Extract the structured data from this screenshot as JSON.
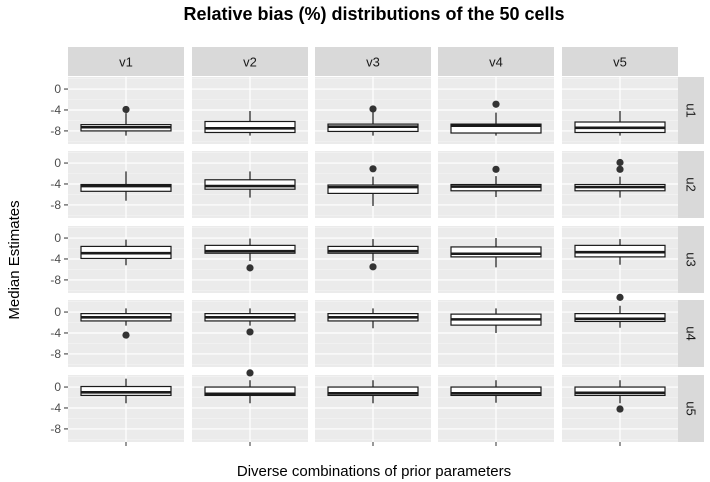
{
  "chart_data": {
    "type": "box",
    "title": "Relative bias (%) distributions of the 50 cells",
    "xlabel": "Diverse combinations of prior parameters",
    "ylabel": "Median Estimates",
    "col_facets": [
      "v1",
      "v2",
      "v3",
      "v4",
      "v5"
    ],
    "row_facets": [
      "u1",
      "u2",
      "u3",
      "u4",
      "u5"
    ],
    "y_ticks": [
      0,
      -4,
      -8
    ],
    "y_tick_labels": [
      "0",
      "-4",
      "-8"
    ],
    "ylim": [
      -10.5,
      2.3
    ],
    "grid": true,
    "panel_background": "#ebebeb",
    "strip_background": "#d9d9d9",
    "box_color": "#1a1a1a",
    "boxes": [
      [
        {
          "q1": -8.0,
          "median": -7.3,
          "q3": -6.8,
          "whisker_low": -8.9,
          "whisker_high": -4.6,
          "outliers": [
            -3.9
          ]
        },
        {
          "q1": -8.3,
          "median": -7.5,
          "q3": -6.2,
          "whisker_low": -8.9,
          "whisker_high": -4.2,
          "outliers": []
        },
        {
          "q1": -8.1,
          "median": -7.2,
          "q3": -6.7,
          "whisker_low": -8.9,
          "whisker_high": -4.4,
          "outliers": [
            -3.8
          ]
        },
        {
          "q1": -8.4,
          "median": -7.0,
          "q3": -6.7,
          "whisker_low": -8.9,
          "whisker_high": -4.5,
          "outliers": [
            -2.9
          ]
        },
        {
          "q1": -8.3,
          "median": -7.4,
          "q3": -6.3,
          "whisker_low": -8.9,
          "whisker_high": -4.2,
          "outliers": []
        }
      ],
      [
        {
          "q1": -5.4,
          "median": -4.4,
          "q3": -4.1,
          "whisker_low": -7.2,
          "whisker_high": -1.6,
          "outliers": []
        },
        {
          "q1": -5.0,
          "median": -4.4,
          "q3": -3.2,
          "whisker_low": -6.6,
          "whisker_high": -1.6,
          "outliers": []
        },
        {
          "q1": -5.8,
          "median": -4.6,
          "q3": -4.2,
          "whisker_low": -8.2,
          "whisker_high": -2.6,
          "outliers": [
            -1.1
          ]
        },
        {
          "q1": -5.3,
          "median": -4.5,
          "q3": -4.1,
          "whisker_low": -6.5,
          "whisker_high": -2.5,
          "outliers": [
            -1.2
          ]
        },
        {
          "q1": -5.3,
          "median": -4.6,
          "q3": -4.1,
          "whisker_low": -6.6,
          "whisker_high": -2.6,
          "outliers": [
            0.1,
            -1.2
          ]
        }
      ],
      [
        {
          "q1": -3.9,
          "median": -2.9,
          "q3": -1.6,
          "whisker_low": -5.2,
          "whisker_high": -0.3,
          "outliers": []
        },
        {
          "q1": -2.9,
          "median": -2.5,
          "q3": -1.4,
          "whisker_low": -4.4,
          "whisker_high": -0.1,
          "outliers": [
            -5.7
          ]
        },
        {
          "q1": -2.9,
          "median": -2.5,
          "q3": -1.6,
          "whisker_low": -4.4,
          "whisker_high": -0.2,
          "outliers": [
            -5.5
          ]
        },
        {
          "q1": -3.6,
          "median": -3.0,
          "q3": -1.7,
          "whisker_low": -5.6,
          "whisker_high": 0.0,
          "outliers": []
        },
        {
          "q1": -3.6,
          "median": -2.7,
          "q3": -1.4,
          "whisker_low": -5.1,
          "whisker_high": -0.2,
          "outliers": []
        }
      ],
      [
        {
          "q1": -1.7,
          "median": -1.0,
          "q3": -0.3,
          "whisker_low": -2.6,
          "whisker_high": 0.7,
          "outliers": [
            -4.4
          ]
        },
        {
          "q1": -1.7,
          "median": -1.0,
          "q3": -0.3,
          "whisker_low": -2.6,
          "whisker_high": 0.7,
          "outliers": [
            -3.8
          ]
        },
        {
          "q1": -1.7,
          "median": -1.0,
          "q3": -0.3,
          "whisker_low": -3.1,
          "whisker_high": 0.7,
          "outliers": []
        },
        {
          "q1": -2.5,
          "median": -1.4,
          "q3": -0.4,
          "whisker_low": -4.0,
          "whisker_high": 0.7,
          "outliers": []
        },
        {
          "q1": -1.8,
          "median": -1.3,
          "q3": -0.3,
          "whisker_low": -3.0,
          "whisker_high": 1.2,
          "outliers": [
            2.8
          ]
        }
      ],
      [
        {
          "q1": -1.6,
          "median": -1.0,
          "q3": 0.1,
          "whisker_low": -3.1,
          "whisker_high": 1.6,
          "outliers": []
        },
        {
          "q1": -1.6,
          "median": -1.3,
          "q3": 0.0,
          "whisker_low": -3.1,
          "whisker_high": 1.3,
          "outliers": [
            2.7
          ]
        },
        {
          "q1": -1.6,
          "median": -1.2,
          "q3": 0.0,
          "whisker_low": -3.1,
          "whisker_high": 1.3,
          "outliers": []
        },
        {
          "q1": -1.6,
          "median": -1.2,
          "q3": 0.0,
          "whisker_low": -3.0,
          "whisker_high": 1.3,
          "outliers": []
        },
        {
          "q1": -1.6,
          "median": -1.1,
          "q3": 0.0,
          "whisker_low": -3.1,
          "whisker_high": 1.3,
          "outliers": [
            -4.2
          ]
        }
      ]
    ]
  }
}
